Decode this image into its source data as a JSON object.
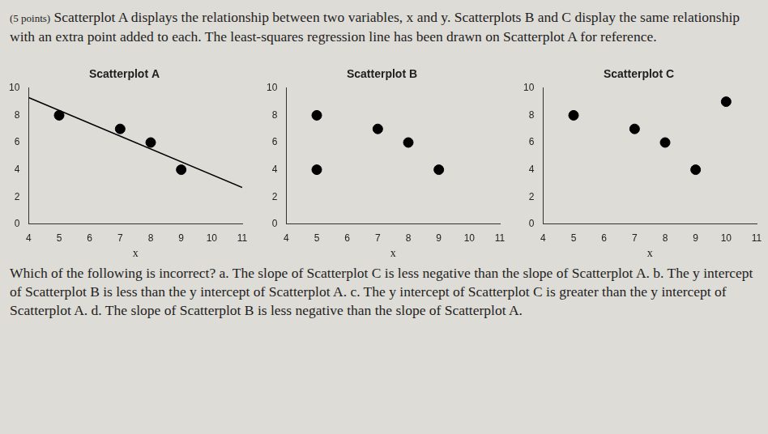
{
  "header": {
    "points": "(5 points)",
    "text": "Scatterplot A displays the relationship between two variables, x and y. Scatterplots B and C display the same relationship with an extra point added to each. The least-squares regression line has been drawn on Scatterplot A for reference."
  },
  "chart_data": [
    {
      "type": "scatter",
      "title": "Scatterplot A",
      "x": [
        5,
        7,
        8,
        9
      ],
      "values": [
        8,
        7,
        6,
        4
      ],
      "color": "#000000",
      "x_label": "x",
      "xlim": [
        4,
        11
      ],
      "xticks": [
        4,
        5,
        6,
        7,
        8,
        9,
        10,
        11
      ],
      "ylim": [
        0,
        10
      ],
      "yticks": [
        0,
        2,
        4,
        6,
        8,
        10
      ],
      "grid": false,
      "regression_line": {
        "x": [
          4,
          11
        ],
        "y": [
          9.3,
          2.7
        ]
      }
    },
    {
      "type": "scatter",
      "title": "Scatterplot B",
      "x": [
        5,
        7,
        8,
        9,
        5
      ],
      "values": [
        8,
        7,
        6,
        4,
        4
      ],
      "color": "#000000",
      "x_label": "x",
      "xlim": [
        4,
        11
      ],
      "xticks": [
        4,
        5,
        6,
        7,
        8,
        9,
        10,
        11
      ],
      "ylim": [
        0,
        10
      ],
      "yticks": [
        0,
        2,
        4,
        6,
        8,
        10
      ],
      "grid": false
    },
    {
      "type": "scatter",
      "title": "Scatterplot C",
      "x": [
        5,
        7,
        8,
        9,
        10
      ],
      "values": [
        8,
        7,
        6,
        4,
        9
      ],
      "color": "#000000",
      "x_label": "x",
      "xlim": [
        4,
        11
      ],
      "xticks": [
        4,
        5,
        6,
        7,
        8,
        9,
        10,
        11
      ],
      "ylim": [
        0,
        10
      ],
      "yticks": [
        0,
        2,
        4,
        6,
        8,
        10
      ],
      "grid": false
    }
  ],
  "question": {
    "text": "Which of the following is incorrect?",
    "options": [
      {
        "label": "a.",
        "text": "The slope of Scatterplot C is less negative than the slope of Scatterplot A."
      },
      {
        "label": "b.",
        "text": "The y intercept of Scatterplot B is less than the y intercept of Scatterplot A."
      },
      {
        "label": "c.",
        "text": "The y intercept of Scatterplot C is greater than the y intercept of Scatterplot A."
      },
      {
        "label": "d.",
        "text": "The slope of Scatterplot B is less negative than the slope of Scatterplot A."
      }
    ]
  }
}
